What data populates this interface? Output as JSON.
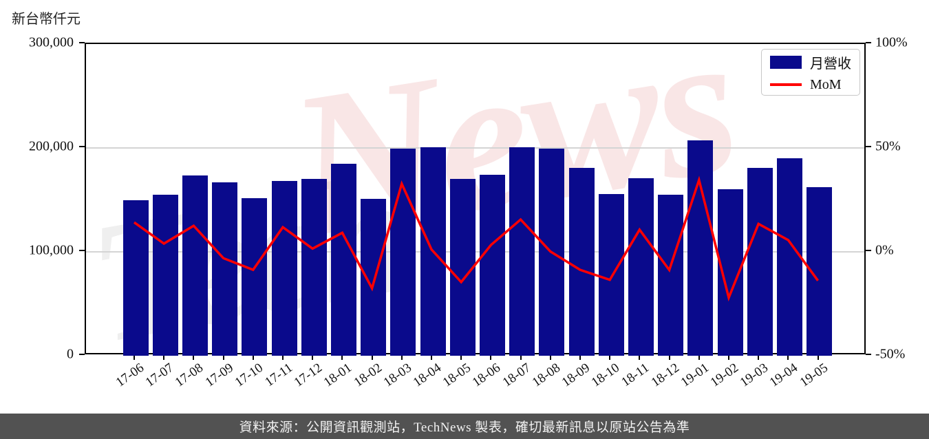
{
  "page": {
    "unit_label": "新台幣仟元",
    "footer_text": "資料來源：公開資訊觀測站，TechNews 製表，確切最新訊息以原站公告為準"
  },
  "legend": {
    "series1_label": "月營收",
    "series2_label": "MoM"
  },
  "watermark": {
    "part1": "Tech",
    "part2": "News"
  },
  "colors": {
    "bar": "#0a0a8c",
    "line": "#ff0000",
    "grid": "#d4d4d4",
    "axis": "#000000",
    "footer_bg": "#525252",
    "watermark_gray": "rgba(130,130,130,0.13)",
    "watermark_pink": "rgba(214,80,80,0.14)"
  },
  "chart_data": {
    "type": "bar+line combo",
    "title": "",
    "categories": [
      "17-06",
      "17-07",
      "17-08",
      "17-09",
      "17-10",
      "17-11",
      "17-12",
      "18-01",
      "18-02",
      "18-03",
      "18-04",
      "18-05",
      "18-06",
      "18-07",
      "18-08",
      "18-09",
      "18-10",
      "18-11",
      "18-12",
      "19-01",
      "19-02",
      "19-03",
      "19-04",
      "19-05"
    ],
    "series": [
      {
        "name": "月營收",
        "type": "bar",
        "axis": "left",
        "unit": "新台幣仟元",
        "values": [
          150000,
          155000,
          173500,
          167000,
          151500,
          168500,
          170000,
          184500,
          151000,
          199500,
          200500,
          170000,
          174500,
          200500,
          199500,
          181000,
          155500,
          171000,
          155000,
          207500,
          160500,
          181000,
          190000,
          162500
        ]
      },
      {
        "name": "MoM",
        "type": "line",
        "axis": "right",
        "unit": "%",
        "values": [
          13.5,
          3.3,
          11.9,
          -3.7,
          -9.3,
          11.2,
          0.9,
          8.5,
          -18.2,
          32.1,
          0.5,
          -15.2,
          2.6,
          14.9,
          -0.5,
          -9.3,
          -14.1,
          10.0,
          -9.4,
          33.9,
          -22.7,
          12.8,
          5.0,
          -14.5
        ]
      }
    ],
    "left_axis": {
      "label": "新台幣仟元",
      "min": 0,
      "max": 300000,
      "ticks": [
        {
          "value": 0,
          "label": "0"
        },
        {
          "value": 100000,
          "label": "100,000"
        },
        {
          "value": 200000,
          "label": "200,000"
        },
        {
          "value": 300000,
          "label": "300,000"
        }
      ]
    },
    "right_axis": {
      "label": "",
      "min": -50,
      "max": 100,
      "ticks": [
        {
          "value": -50,
          "label": "-50%"
        },
        {
          "value": 0,
          "label": "0%"
        },
        {
          "value": 50,
          "label": "50%"
        },
        {
          "value": 100,
          "label": "100%"
        }
      ]
    },
    "grid_values": [
      100000,
      200000
    ],
    "legend_position": "top-right",
    "x_label_rotation_deg": -35
  }
}
